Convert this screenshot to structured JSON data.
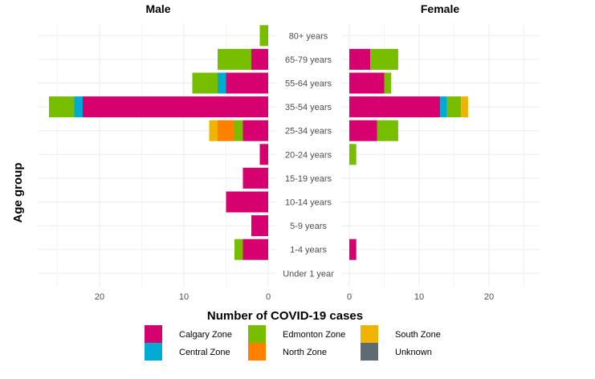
{
  "chart_data": {
    "type": "bar",
    "orientation": "horizontal",
    "layout": "population-pyramid",
    "panels": [
      "Male",
      "Female"
    ],
    "categories": [
      "80+ years",
      "65-79 years",
      "55-64 years",
      "35-54 years",
      "25-34 years",
      "20-24 years",
      "15-19 years",
      "10-14 years",
      "5-9 years",
      "1-4 years",
      "Under 1 year"
    ],
    "xlabel": "Number of COVID-19 cases",
    "ylabel": "Age group",
    "male_xlim": [
      0,
      27
    ],
    "female_xlim": [
      0,
      27
    ],
    "ticks": [
      0,
      10,
      20
    ],
    "grid": true,
    "legend_position": "bottom",
    "series": [
      {
        "name": "Calgary Zone",
        "color": "#d6006f",
        "male": [
          0,
          2,
          5,
          22,
          3,
          1,
          3,
          5,
          2,
          3,
          0
        ],
        "female": [
          0,
          3,
          5,
          13,
          4,
          0,
          0,
          0,
          0,
          1,
          0
        ]
      },
      {
        "name": "Central Zone",
        "color": "#00aad2",
        "male": [
          0,
          0,
          1,
          1,
          0,
          0,
          0,
          0,
          0,
          0,
          0
        ],
        "female": [
          0,
          0,
          0,
          1,
          0,
          0,
          0,
          0,
          0,
          0,
          0
        ]
      },
      {
        "name": "Edmonton Zone",
        "color": "#77be00",
        "male": [
          1,
          4,
          3,
          3,
          1,
          0,
          0,
          0,
          0,
          1,
          0
        ],
        "female": [
          0,
          4,
          1,
          2,
          3,
          1,
          0,
          0,
          0,
          0,
          0
        ]
      },
      {
        "name": "North Zone",
        "color": "#ff7f00",
        "male": [
          0,
          0,
          0,
          0,
          2,
          0,
          0,
          0,
          0,
          0,
          0
        ],
        "female": [
          0,
          0,
          0,
          0,
          0,
          0,
          0,
          0,
          0,
          0,
          0
        ]
      },
      {
        "name": "South Zone",
        "color": "#f0b400",
        "male": [
          0,
          0,
          0,
          0,
          1,
          0,
          0,
          0,
          0,
          0,
          0
        ],
        "female": [
          0,
          0,
          0,
          1,
          0,
          0,
          0,
          0,
          0,
          0,
          0
        ]
      },
      {
        "name": "Unknown",
        "color": "#606a73",
        "male": [
          0,
          0,
          0,
          0,
          0,
          0,
          0,
          0,
          0,
          0,
          0
        ],
        "female": [
          0,
          0,
          0,
          0,
          0,
          0,
          0,
          0,
          0,
          0,
          0
        ]
      }
    ],
    "legend_layout": [
      [
        "Calgary Zone",
        "Edmonton Zone",
        "South Zone"
      ],
      [
        "Central Zone",
        "North Zone",
        "Unknown"
      ]
    ]
  }
}
